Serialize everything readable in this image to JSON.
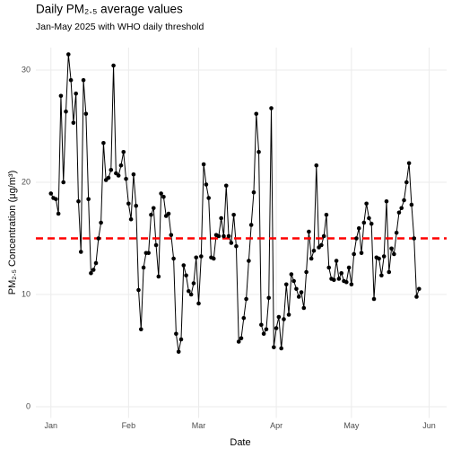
{
  "chart_data": {
    "type": "line",
    "title": "Daily PM₂.₅ average values",
    "subtitle": "Jan-May 2025 with WHO daily threshold",
    "xlabel": "Date",
    "ylabel": "PM₂.₅ Concentration (μg/m³)",
    "color": "#000000",
    "markers": true,
    "grid": true,
    "reference_line": {
      "value": 15,
      "color": "#ff0000",
      "dashed": true
    },
    "xlim": [
      -6,
      158
    ],
    "xticks": [
      {
        "value": 0,
        "label": "Jan"
      },
      {
        "value": 31,
        "label": "Feb"
      },
      {
        "value": 59,
        "label": "Mar"
      },
      {
        "value": 90,
        "label": "Apr"
      },
      {
        "value": 120,
        "label": "May"
      },
      {
        "value": 151,
        "label": "Jun"
      }
    ],
    "ylim": [
      -1,
      32
    ],
    "yticks": [
      0,
      10,
      20,
      30
    ],
    "x": [
      0,
      1,
      2,
      3,
      4,
      5,
      6,
      7,
      8,
      9,
      10,
      11,
      12,
      13,
      14,
      15,
      16,
      17,
      18,
      19,
      20,
      21,
      22,
      23,
      24,
      25,
      26,
      27,
      28,
      29,
      30,
      31,
      32,
      33,
      34,
      35,
      36,
      37,
      38,
      39,
      40,
      41,
      42,
      43,
      44,
      45,
      46,
      47,
      48,
      49,
      50,
      51,
      52,
      53,
      54,
      55,
      56,
      57,
      58,
      59,
      60,
      61,
      62,
      63,
      64,
      65,
      66,
      67,
      68,
      69,
      70,
      71,
      72,
      73,
      74,
      75,
      76,
      77,
      78,
      79,
      80,
      81,
      82,
      83,
      84,
      85,
      86,
      87,
      88,
      89,
      90,
      91,
      92,
      93,
      94,
      95,
      96,
      97,
      98,
      99,
      100,
      101,
      102,
      103,
      104,
      105,
      106,
      107,
      108,
      109,
      110,
      111,
      112,
      113,
      114,
      115,
      116,
      117,
      118,
      119,
      120,
      121,
      122,
      123,
      124,
      125,
      126,
      127,
      128,
      129,
      130,
      131,
      132,
      133,
      134,
      135,
      136,
      137,
      138,
      139,
      140,
      141,
      142,
      143,
      144,
      145,
      146,
      147
    ],
    "values": [
      19.0,
      18.6,
      18.5,
      17.2,
      27.7,
      20.0,
      26.3,
      31.4,
      29.1,
      25.3,
      27.9,
      18.3,
      13.8,
      29.1,
      26.1,
      18.5,
      11.9,
      12.2,
      12.8,
      15.0,
      16.4,
      23.5,
      20.2,
      20.4,
      21.1,
      30.4,
      20.8,
      20.6,
      21.5,
      22.7,
      20.3,
      18.1,
      16.7,
      20.7,
      17.9,
      10.4,
      6.9,
      12.4,
      13.7,
      13.7,
      17.1,
      17.7,
      14.4,
      11.6,
      19.0,
      18.7,
      17.0,
      17.2,
      15.3,
      13.2,
      6.5,
      4.9,
      6.0,
      12.6,
      11.7,
      10.3,
      10.0,
      11.0,
      13.3,
      9.2,
      13.4,
      21.6,
      19.8,
      18.6,
      13.3,
      13.2,
      15.3,
      15.2,
      16.8,
      15.2,
      19.7,
      15.2,
      14.6,
      17.1,
      14.3,
      5.8,
      6.1,
      7.9,
      9.6,
      13.0,
      16.2,
      19.1,
      26.1,
      22.7,
      7.3,
      6.5,
      6.9,
      9.7,
      26.6,
      5.3,
      7.0,
      8.0,
      5.2,
      7.8,
      10.9,
      8.2,
      11.8,
      11.2,
      10.5,
      9.8,
      10.2,
      8.8,
      12.0,
      15.6,
      13.2,
      13.9,
      21.5,
      14.2,
      14.4,
      15.2,
      17.1,
      12.4,
      11.4,
      11.3,
      13.0,
      11.4,
      11.9,
      11.2,
      11.1,
      12.4,
      10.9,
      13.6,
      15.0,
      15.9,
      13.7,
      16.4,
      18.1,
      16.8,
      16.3,
      9.6,
      13.3,
      13.2,
      11.7,
      13.4,
      18.3,
      12.0,
      14.1,
      13.6,
      15.5,
      17.3,
      17.7,
      18.4,
      20.0,
      21.7,
      18.0,
      15.0,
      9.8,
      10.5
    ]
  }
}
